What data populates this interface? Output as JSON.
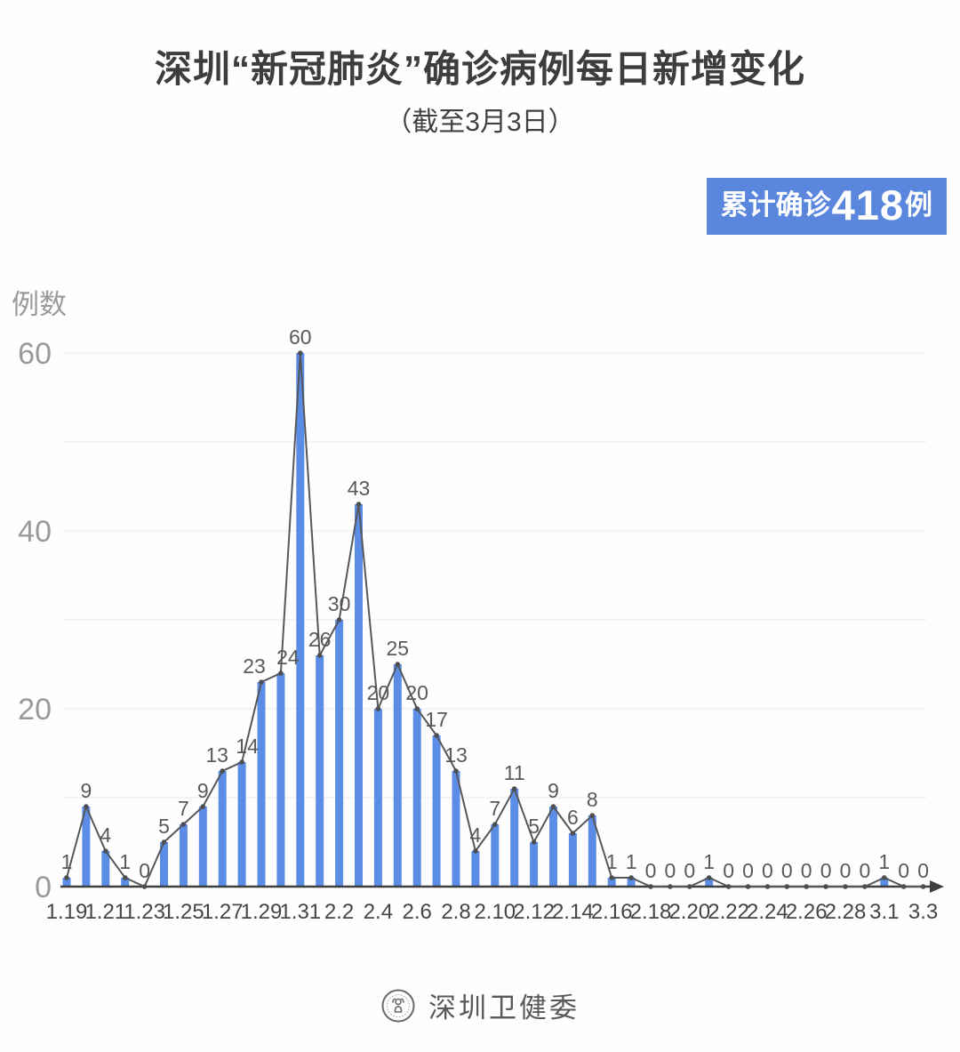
{
  "title": "深圳“新冠肺炎”确诊病例每日新增变化",
  "subtitle": "（截至3月3日）",
  "badge": {
    "prefix": "累计确诊",
    "number": "418",
    "suffix": "例",
    "bg_color": "#5b86dd"
  },
  "chart_data": {
    "type": "bar",
    "line_overlay": true,
    "title": "深圳“新冠肺炎”确诊病例每日新增变化（截至3月3日）",
    "xlabel": "",
    "ylabel": "例数",
    "categories": [
      "1.19",
      "1.20",
      "1.21",
      "1.22",
      "1.23",
      "1.24",
      "1.25",
      "1.26",
      "1.27",
      "1.28",
      "1.29",
      "1.30",
      "1.31",
      "2.1",
      "2.2",
      "2.3",
      "2.4",
      "2.5",
      "2.6",
      "2.7",
      "2.8",
      "2.9",
      "2.10",
      "2.11",
      "2.12",
      "2.13",
      "2.14",
      "2.15",
      "2.16",
      "2.17",
      "2.18",
      "2.19",
      "2.20",
      "2.21",
      "2.22",
      "2.23",
      "2.24",
      "2.25",
      "2.26",
      "2.27",
      "2.28",
      "2.29",
      "3.1",
      "3.2",
      "3.3"
    ],
    "values": [
      1,
      9,
      4,
      1,
      0,
      5,
      7,
      9,
      13,
      14,
      23,
      24,
      60,
      26,
      30,
      43,
      20,
      25,
      20,
      17,
      13,
      4,
      7,
      11,
      5,
      9,
      6,
      8,
      1,
      1,
      0,
      0,
      0,
      1,
      0,
      0,
      0,
      0,
      0,
      0,
      0,
      0,
      1,
      0,
      0
    ],
    "x_tick_labels": [
      "1.19",
      "1.21",
      "1.23",
      "1.25",
      "1.27",
      "1.29",
      "1.31",
      "2.2",
      "2.4",
      "2.6",
      "2.8",
      "2.10",
      "2.12",
      "2.14",
      "2.16",
      "2.18",
      "2.20",
      "2.22",
      "2.24",
      "2.26",
      "2.28",
      "3.1",
      "3.3"
    ],
    "x_tick_every": 2,
    "ylim": [
      0,
      62
    ],
    "ytick_labels": [
      0,
      20,
      40,
      60
    ],
    "gridline_step": 10,
    "grid": true,
    "legend_position": "none",
    "bar_color": "#5b8ce6",
    "line_color": "#56575a",
    "marker_color": "#4d4e50",
    "value_label_color": "#595959",
    "axis_color": "#3f3f3f",
    "ytick_color": "#9a9a9a",
    "xtick_color": "#454545",
    "gridline_color": "#ebebeb",
    "cumulative_total": 418
  },
  "footer": {
    "org": "深圳卫健委",
    "logo": "shenzhen-health-commission-seal"
  }
}
